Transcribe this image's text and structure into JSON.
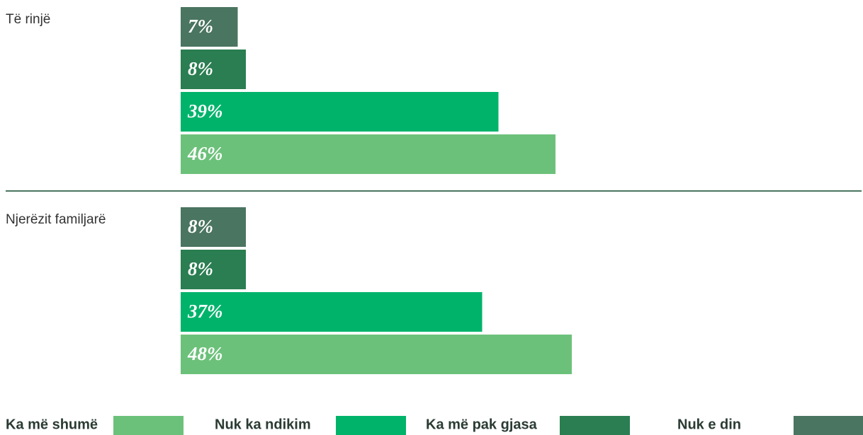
{
  "chart_data": {
    "type": "bar",
    "categories": [
      "Të rinjë",
      "Njerëzit familjarë"
    ],
    "series": [
      {
        "name": "Ka më shumë",
        "color": "#6cc17a",
        "values": [
          46,
          48
        ],
        "value_labels": [
          "46%",
          "48%"
        ]
      },
      {
        "name": "Nuk ka ndikim",
        "color": "#00b36b",
        "values": [
          39,
          37
        ],
        "value_labels": [
          "39%",
          "37%"
        ]
      },
      {
        "name": "Ka më pak gjasa",
        "color": "#2a7e51",
        "values": [
          8,
          8
        ],
        "value_labels": [
          "8%",
          "8%"
        ]
      },
      {
        "name": "Nuk e din",
        "color": "#4a7560",
        "values": [
          7,
          8
        ],
        "value_labels": [
          "7%",
          "8%"
        ]
      }
    ]
  }
}
